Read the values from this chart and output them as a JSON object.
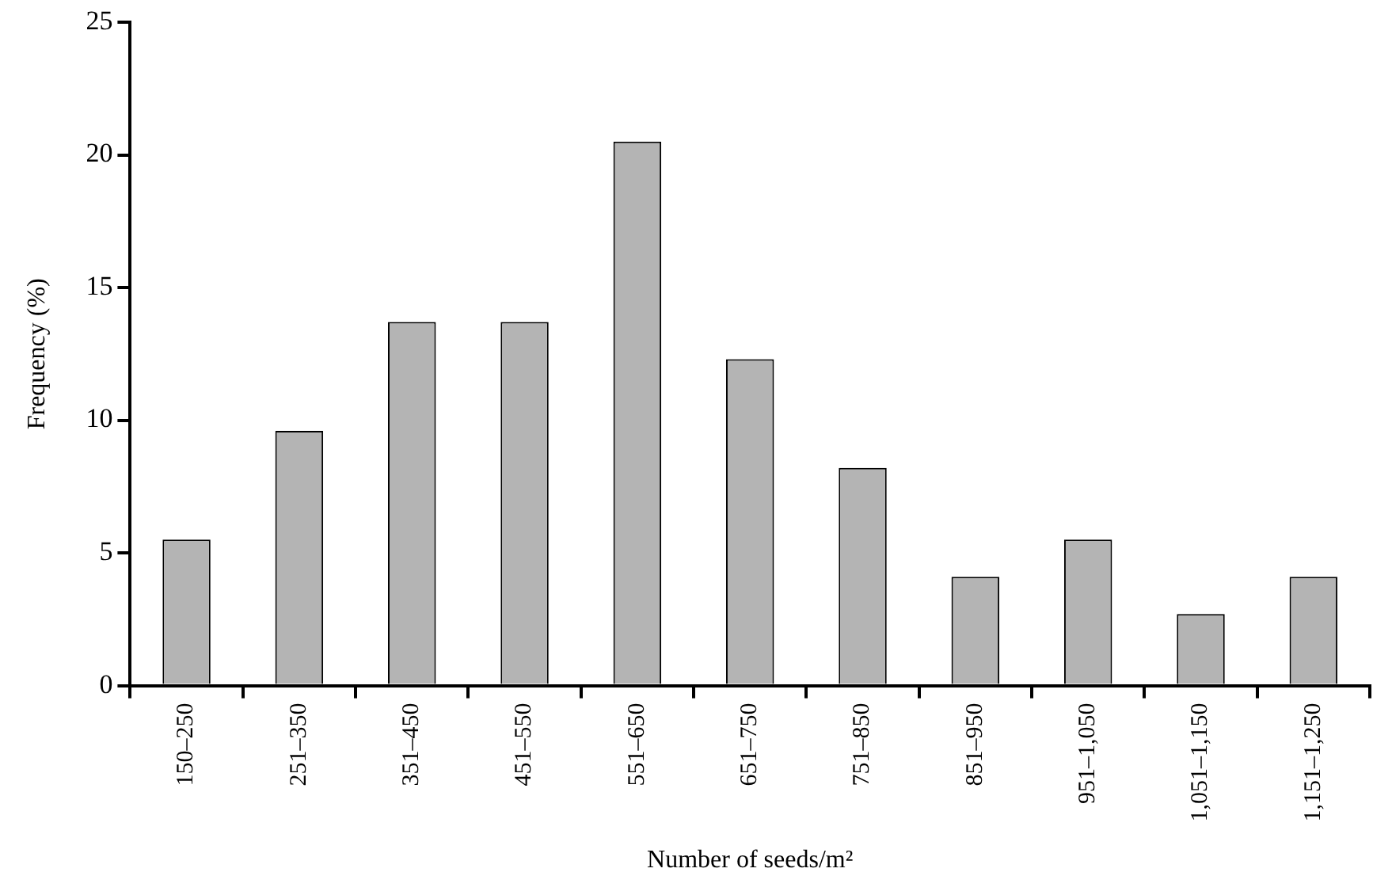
{
  "chart_data": {
    "type": "bar",
    "xlabel": "Number of seeds/m²",
    "ylabel": "Frequency (%)",
    "categories": [
      "150–250",
      "251–350",
      "351–450",
      "451–550",
      "551–650",
      "651–750",
      "751–850",
      "851–950",
      "951–1,050",
      "1,051–1,150",
      "1,151–1,250"
    ],
    "values": [
      5.5,
      9.6,
      13.7,
      13.7,
      20.5,
      12.3,
      8.2,
      4.1,
      5.5,
      2.7,
      4.1
    ],
    "color": "#b4b4b4",
    "ylim": [
      0,
      25
    ],
    "yticks": [
      0,
      5,
      10,
      15,
      20,
      25
    ],
    "grid": false,
    "legend": false
  }
}
